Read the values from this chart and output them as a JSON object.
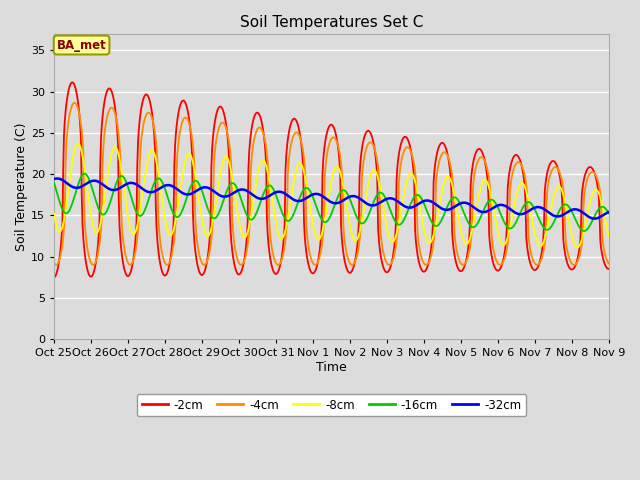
{
  "title": "Soil Temperatures Set C",
  "xlabel": "Time",
  "ylabel": "Soil Temperature (C)",
  "ylim": [
    0,
    37
  ],
  "yticks": [
    0,
    5,
    10,
    15,
    20,
    25,
    30,
    35
  ],
  "x_tick_labels": [
    "Oct 25",
    "Oct 26",
    "Oct 27",
    "Oct 28",
    "Oct 29",
    "Oct 30",
    "Oct 31",
    "Nov 1",
    "Nov 2",
    "Nov 3",
    "Nov 4",
    "Nov 5",
    "Nov 6",
    "Nov 7",
    "Nov 8",
    "Nov 9"
  ],
  "legend_labels": [
    "-2cm",
    "-4cm",
    "-8cm",
    "-16cm",
    "-32cm"
  ],
  "legend_colors": [
    "#FF0000",
    "#FF8C00",
    "#FFFF00",
    "#00CC00",
    "#0000FF"
  ],
  "bg_color": "#DCDCDC",
  "annotation_text": "BA_met",
  "annotation_bg": "#FFFF99",
  "annotation_border": "#999900",
  "annotation_text_color": "#8B0000"
}
